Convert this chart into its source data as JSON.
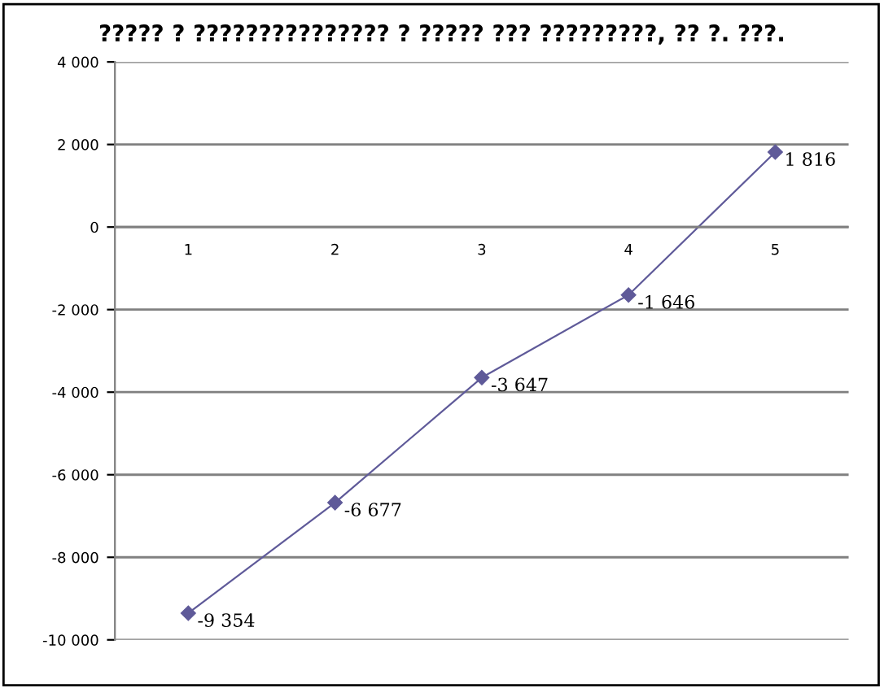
{
  "chart_data": {
    "type": "line",
    "title": "????? ? ??????????????? ? ????? ??? ?????????, ?? ?. ???.",
    "categories": [
      "1",
      "2",
      "3",
      "4",
      "5"
    ],
    "series": [
      {
        "color": "#5f5a99",
        "values": [
          -9354,
          -6677,
          -3647,
          -1646,
          1816
        ],
        "value_labels": [
          "-9 354",
          "-6 677",
          "-3 647",
          "-1 646",
          "1 816"
        ]
      }
    ],
    "ylim": [
      -10000,
      4000
    ],
    "yticks": [
      {
        "value": -10000,
        "label": "-10 000"
      },
      {
        "value": -8000,
        "label": "-8 000"
      },
      {
        "value": -6000,
        "label": "-6 000"
      },
      {
        "value": -4000,
        "label": "-4 000"
      },
      {
        "value": -2000,
        "label": "-2 000"
      },
      0,
      {
        "value": 2000,
        "label": "2 000"
      },
      {
        "value": 4000,
        "label": "4 000"
      }
    ],
    "grid": "y",
    "marker": "diamond",
    "line_style": "solid",
    "legend": false
  }
}
